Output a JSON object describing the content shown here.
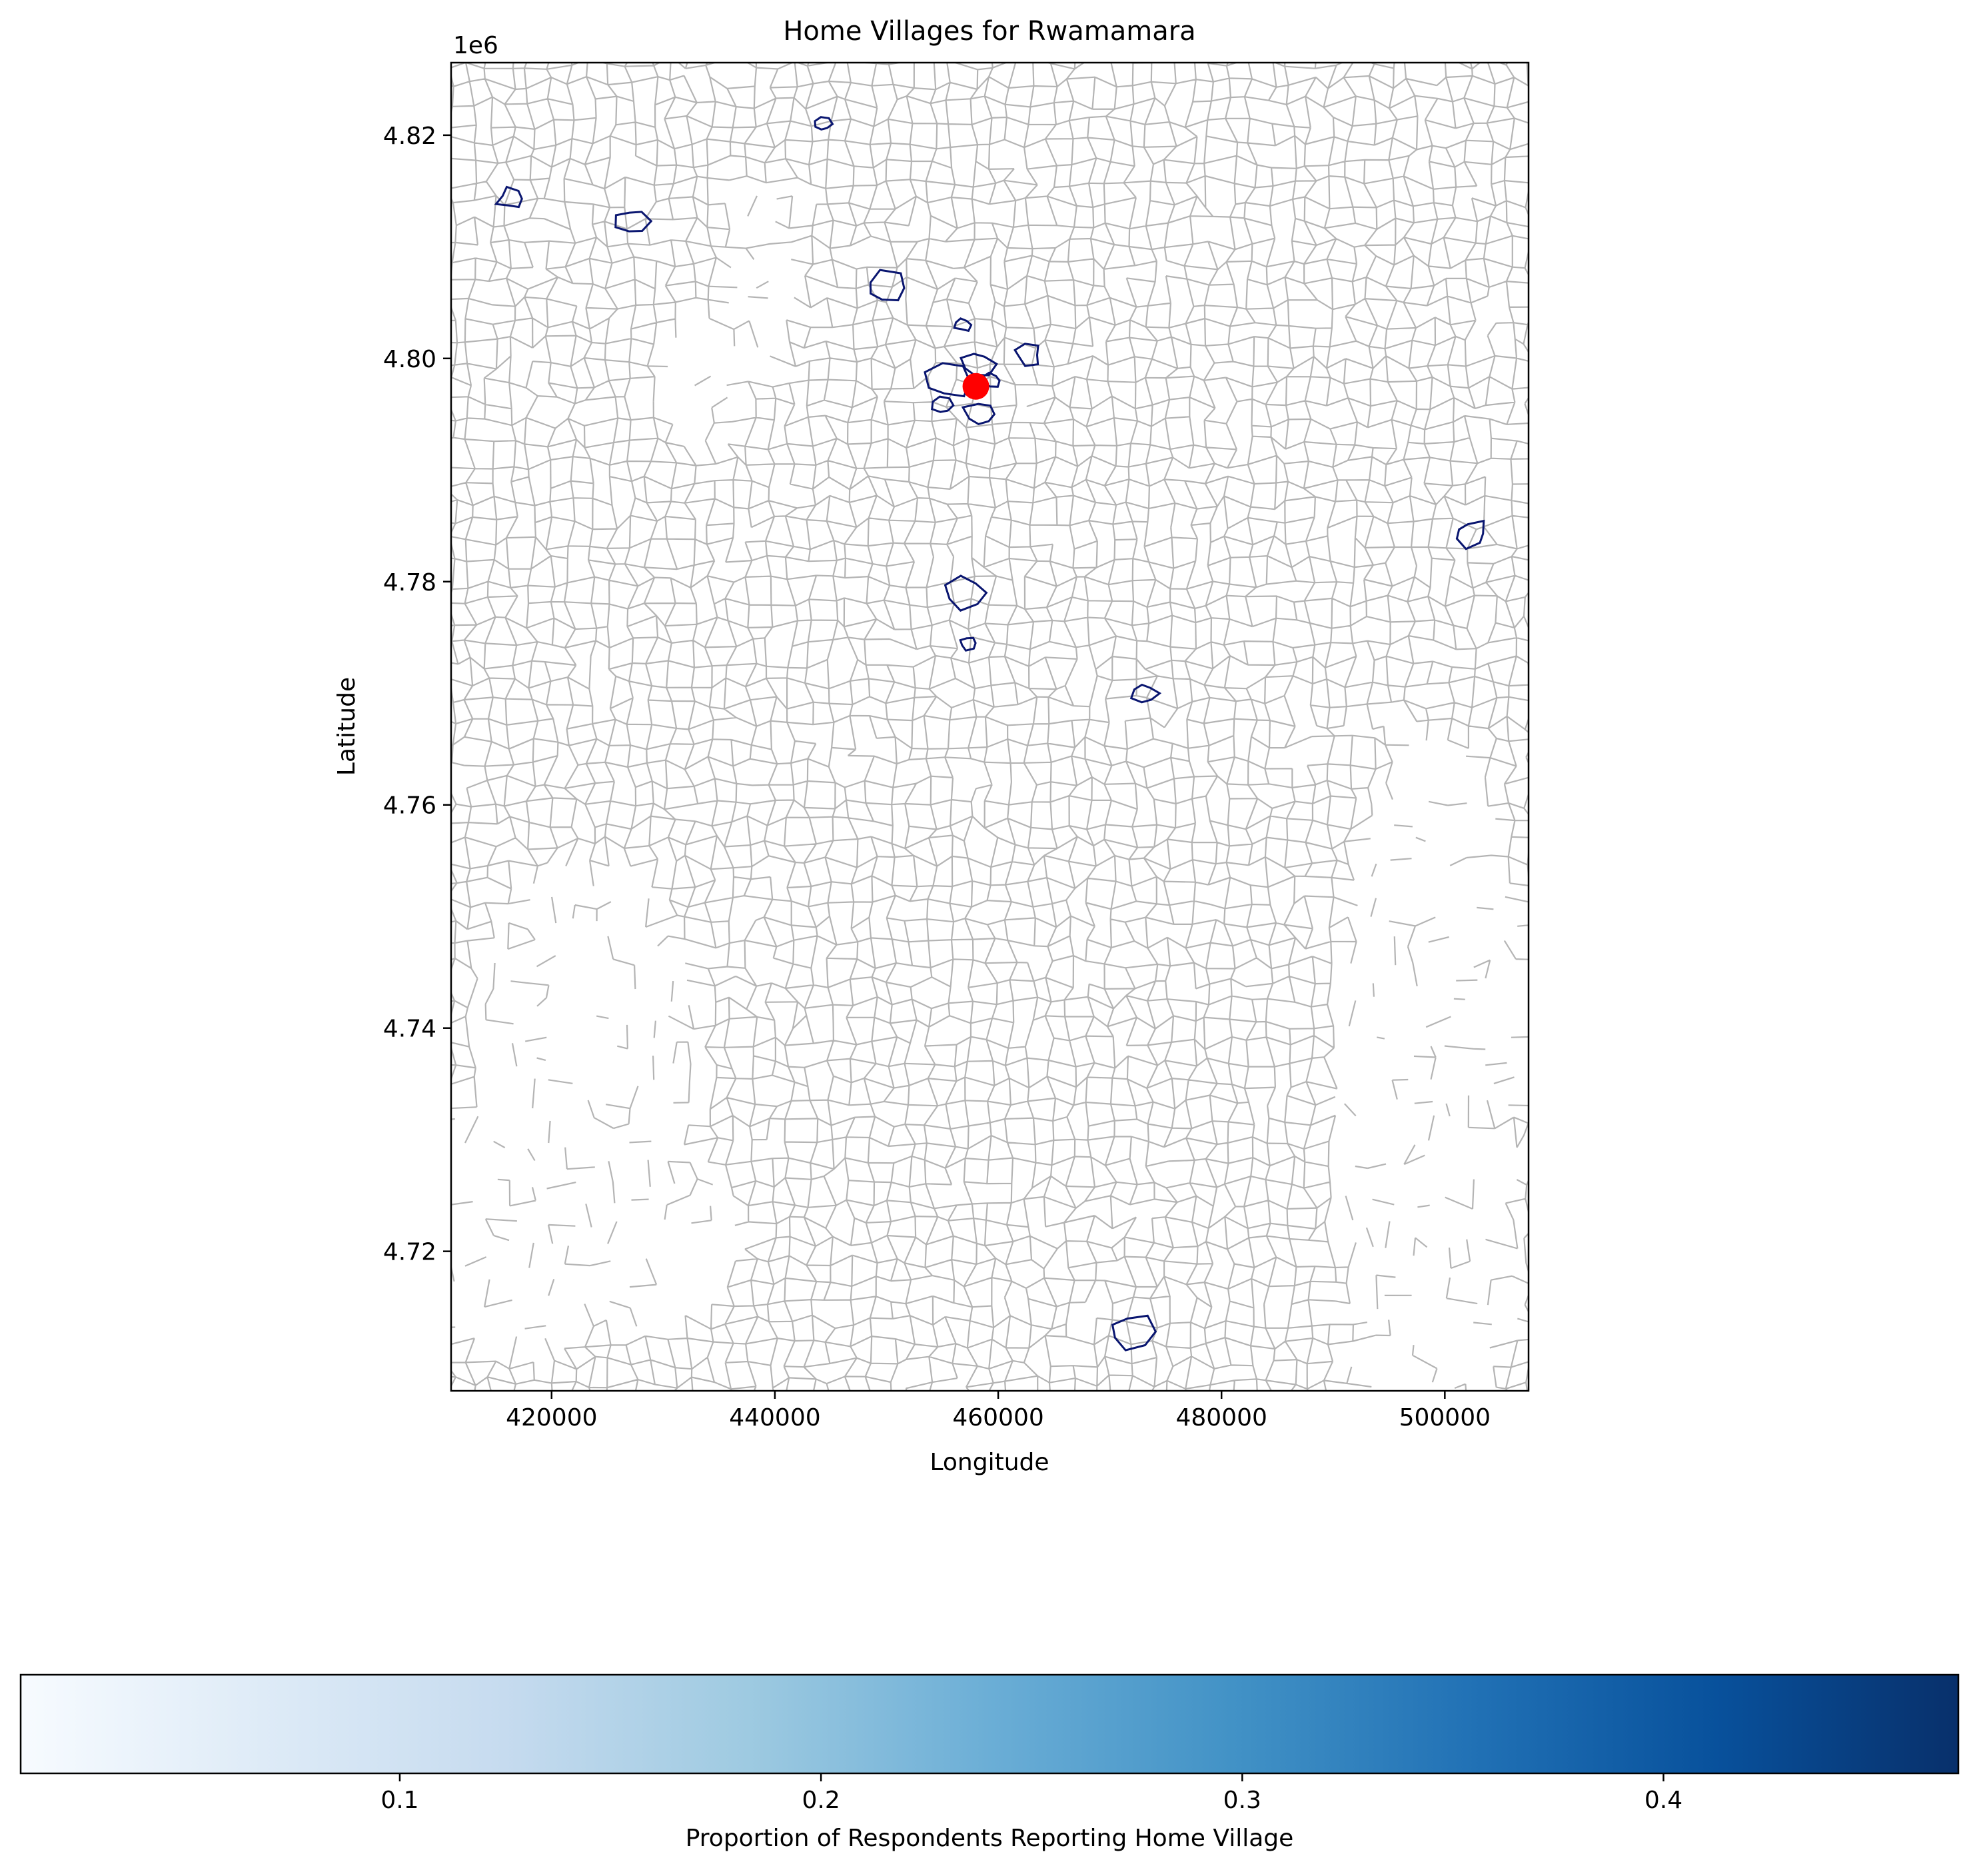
{
  "title": "Home Villages for Rwamamara",
  "map": {
    "xlabel": "Longitude",
    "ylabel": "Latitude",
    "y_offset_label": "1e6",
    "xlim": [
      411000,
      507500
    ],
    "ylim": [
      4.7075,
      4.8265
    ],
    "x_ticks": [
      {
        "value": 420000,
        "label": "420000"
      },
      {
        "value": 440000,
        "label": "440000"
      },
      {
        "value": 460000,
        "label": "460000"
      },
      {
        "value": 480000,
        "label": "480000"
      },
      {
        "value": 500000,
        "label": "500000"
      }
    ],
    "y_ticks": [
      {
        "value": 4.72,
        "label": "4.72"
      },
      {
        "value": 4.74,
        "label": "4.74"
      },
      {
        "value": 4.76,
        "label": "4.76"
      },
      {
        "value": 4.78,
        "label": "4.78"
      },
      {
        "value": 4.8,
        "label": "4.80"
      },
      {
        "value": 4.82,
        "label": "4.82"
      }
    ],
    "boundary_color": "#b4b4b4",
    "highlight_color": "#0a1670",
    "marker_color": "#ff0000",
    "highlighted_villages": [
      {
        "x": 444300,
        "y": 4.821
      },
      {
        "x": 416300,
        "y": 4.8143
      },
      {
        "x": 427200,
        "y": 4.8123
      },
      {
        "x": 449900,
        "y": 4.8063
      },
      {
        "x": 456800,
        "y": 4.803
      },
      {
        "x": 462700,
        "y": 4.8003
      },
      {
        "x": 458100,
        "y": 4.7995
      },
      {
        "x": 455500,
        "y": 4.798
      },
      {
        "x": 459400,
        "y": 4.798
      },
      {
        "x": 455000,
        "y": 4.7958
      },
      {
        "x": 458500,
        "y": 4.795
      },
      {
        "x": 457100,
        "y": 4.779
      },
      {
        "x": 457300,
        "y": 4.7745
      },
      {
        "x": 473100,
        "y": 4.77
      },
      {
        "x": 502300,
        "y": 4.7843
      },
      {
        "x": 471900,
        "y": 4.7128
      }
    ],
    "home_point": {
      "x": 458000,
      "y": 4.7975
    }
  },
  "colorbar": {
    "label": "Proportion of Respondents Reporting Home Village",
    "colormap": "Blues",
    "range": [
      0.01,
      0.47
    ],
    "ticks": [
      {
        "value": 0.1,
        "label": "0.1"
      },
      {
        "value": 0.2,
        "label": "0.2"
      },
      {
        "value": 0.3,
        "label": "0.3"
      },
      {
        "value": 0.4,
        "label": "0.4"
      }
    ],
    "stops": [
      "#f7fbff",
      "#deebf7",
      "#c6dbef",
      "#9ecae1",
      "#6baed6",
      "#4292c6",
      "#2171b5",
      "#08519c",
      "#08306b"
    ]
  }
}
